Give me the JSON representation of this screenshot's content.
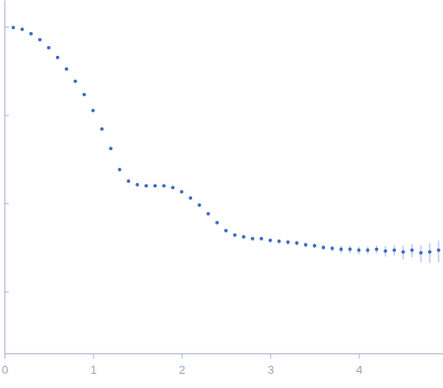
{
  "chart_data": {
    "type": "scatter",
    "x": [
      0.1,
      0.2,
      0.3,
      0.4,
      0.5,
      0.6,
      0.7,
      0.8,
      0.9,
      1.0,
      1.1,
      1.2,
      1.3,
      1.4,
      1.5,
      1.6,
      1.7,
      1.8,
      1.9,
      2.0,
      2.1,
      2.2,
      2.3,
      2.4,
      2.5,
      2.6,
      2.7,
      2.8,
      2.9,
      3.0,
      3.1,
      3.2,
      3.3,
      3.4,
      3.5,
      3.6,
      3.7,
      3.8,
      3.9,
      4.0,
      4.1,
      4.2,
      4.3,
      4.4,
      4.5,
      4.6,
      4.7,
      4.8,
      4.9
    ],
    "series": [
      {
        "color": "#3d6cbf",
        "marker": "circle",
        "values": [
          0.977,
          0.933,
          0.832,
          0.708,
          0.575,
          0.447,
          0.331,
          0.24,
          0.17,
          0.112,
          0.0692,
          0.0417,
          0.024,
          0.0178,
          0.0162,
          0.0158,
          0.0158,
          0.0158,
          0.0151,
          0.0135,
          0.0115,
          0.00955,
          0.00759,
          0.00603,
          0.0049,
          0.00437,
          0.00417,
          0.00398,
          0.00398,
          0.0038,
          0.00372,
          0.00363,
          0.00355,
          0.00339,
          0.00331,
          0.00316,
          0.00309,
          0.00302,
          0.00302,
          0.00295,
          0.00295,
          0.00302,
          0.00288,
          0.00295,
          0.00282,
          0.00295,
          0.00275,
          0.00282,
          0.00295
        ],
        "error": [
          0.005,
          0.005,
          0.005,
          0.004,
          0.004,
          0.003,
          0.003,
          0.002,
          0.002,
          0.001,
          0.001,
          0.0006,
          0.0004,
          0.0003,
          0.0003,
          0.0003,
          0.0003,
          0.0003,
          0.0003,
          0.0003,
          0.0003,
          0.0003,
          0.0002,
          0.0002,
          0.0002,
          0.0002,
          0.0002,
          0.0002,
          0.0002,
          0.0002,
          0.0002,
          0.0002,
          0.0002,
          0.0002,
          0.0002,
          0.0002,
          0.0002,
          0.0003,
          0.0003,
          0.0003,
          0.0003,
          0.0003,
          0.0004,
          0.0004,
          0.0005,
          0.0005,
          0.0006,
          0.0007,
          0.0008
        ]
      }
    ],
    "xlim": [
      0,
      4.95
    ],
    "ylim": [
      0.0002,
      2
    ],
    "xticks": [
      0,
      1,
      2,
      3,
      4
    ],
    "yticks": [
      0.001,
      0.01,
      0.1,
      1
    ],
    "log": "y",
    "tick_labels": "x",
    "grid": false
  }
}
